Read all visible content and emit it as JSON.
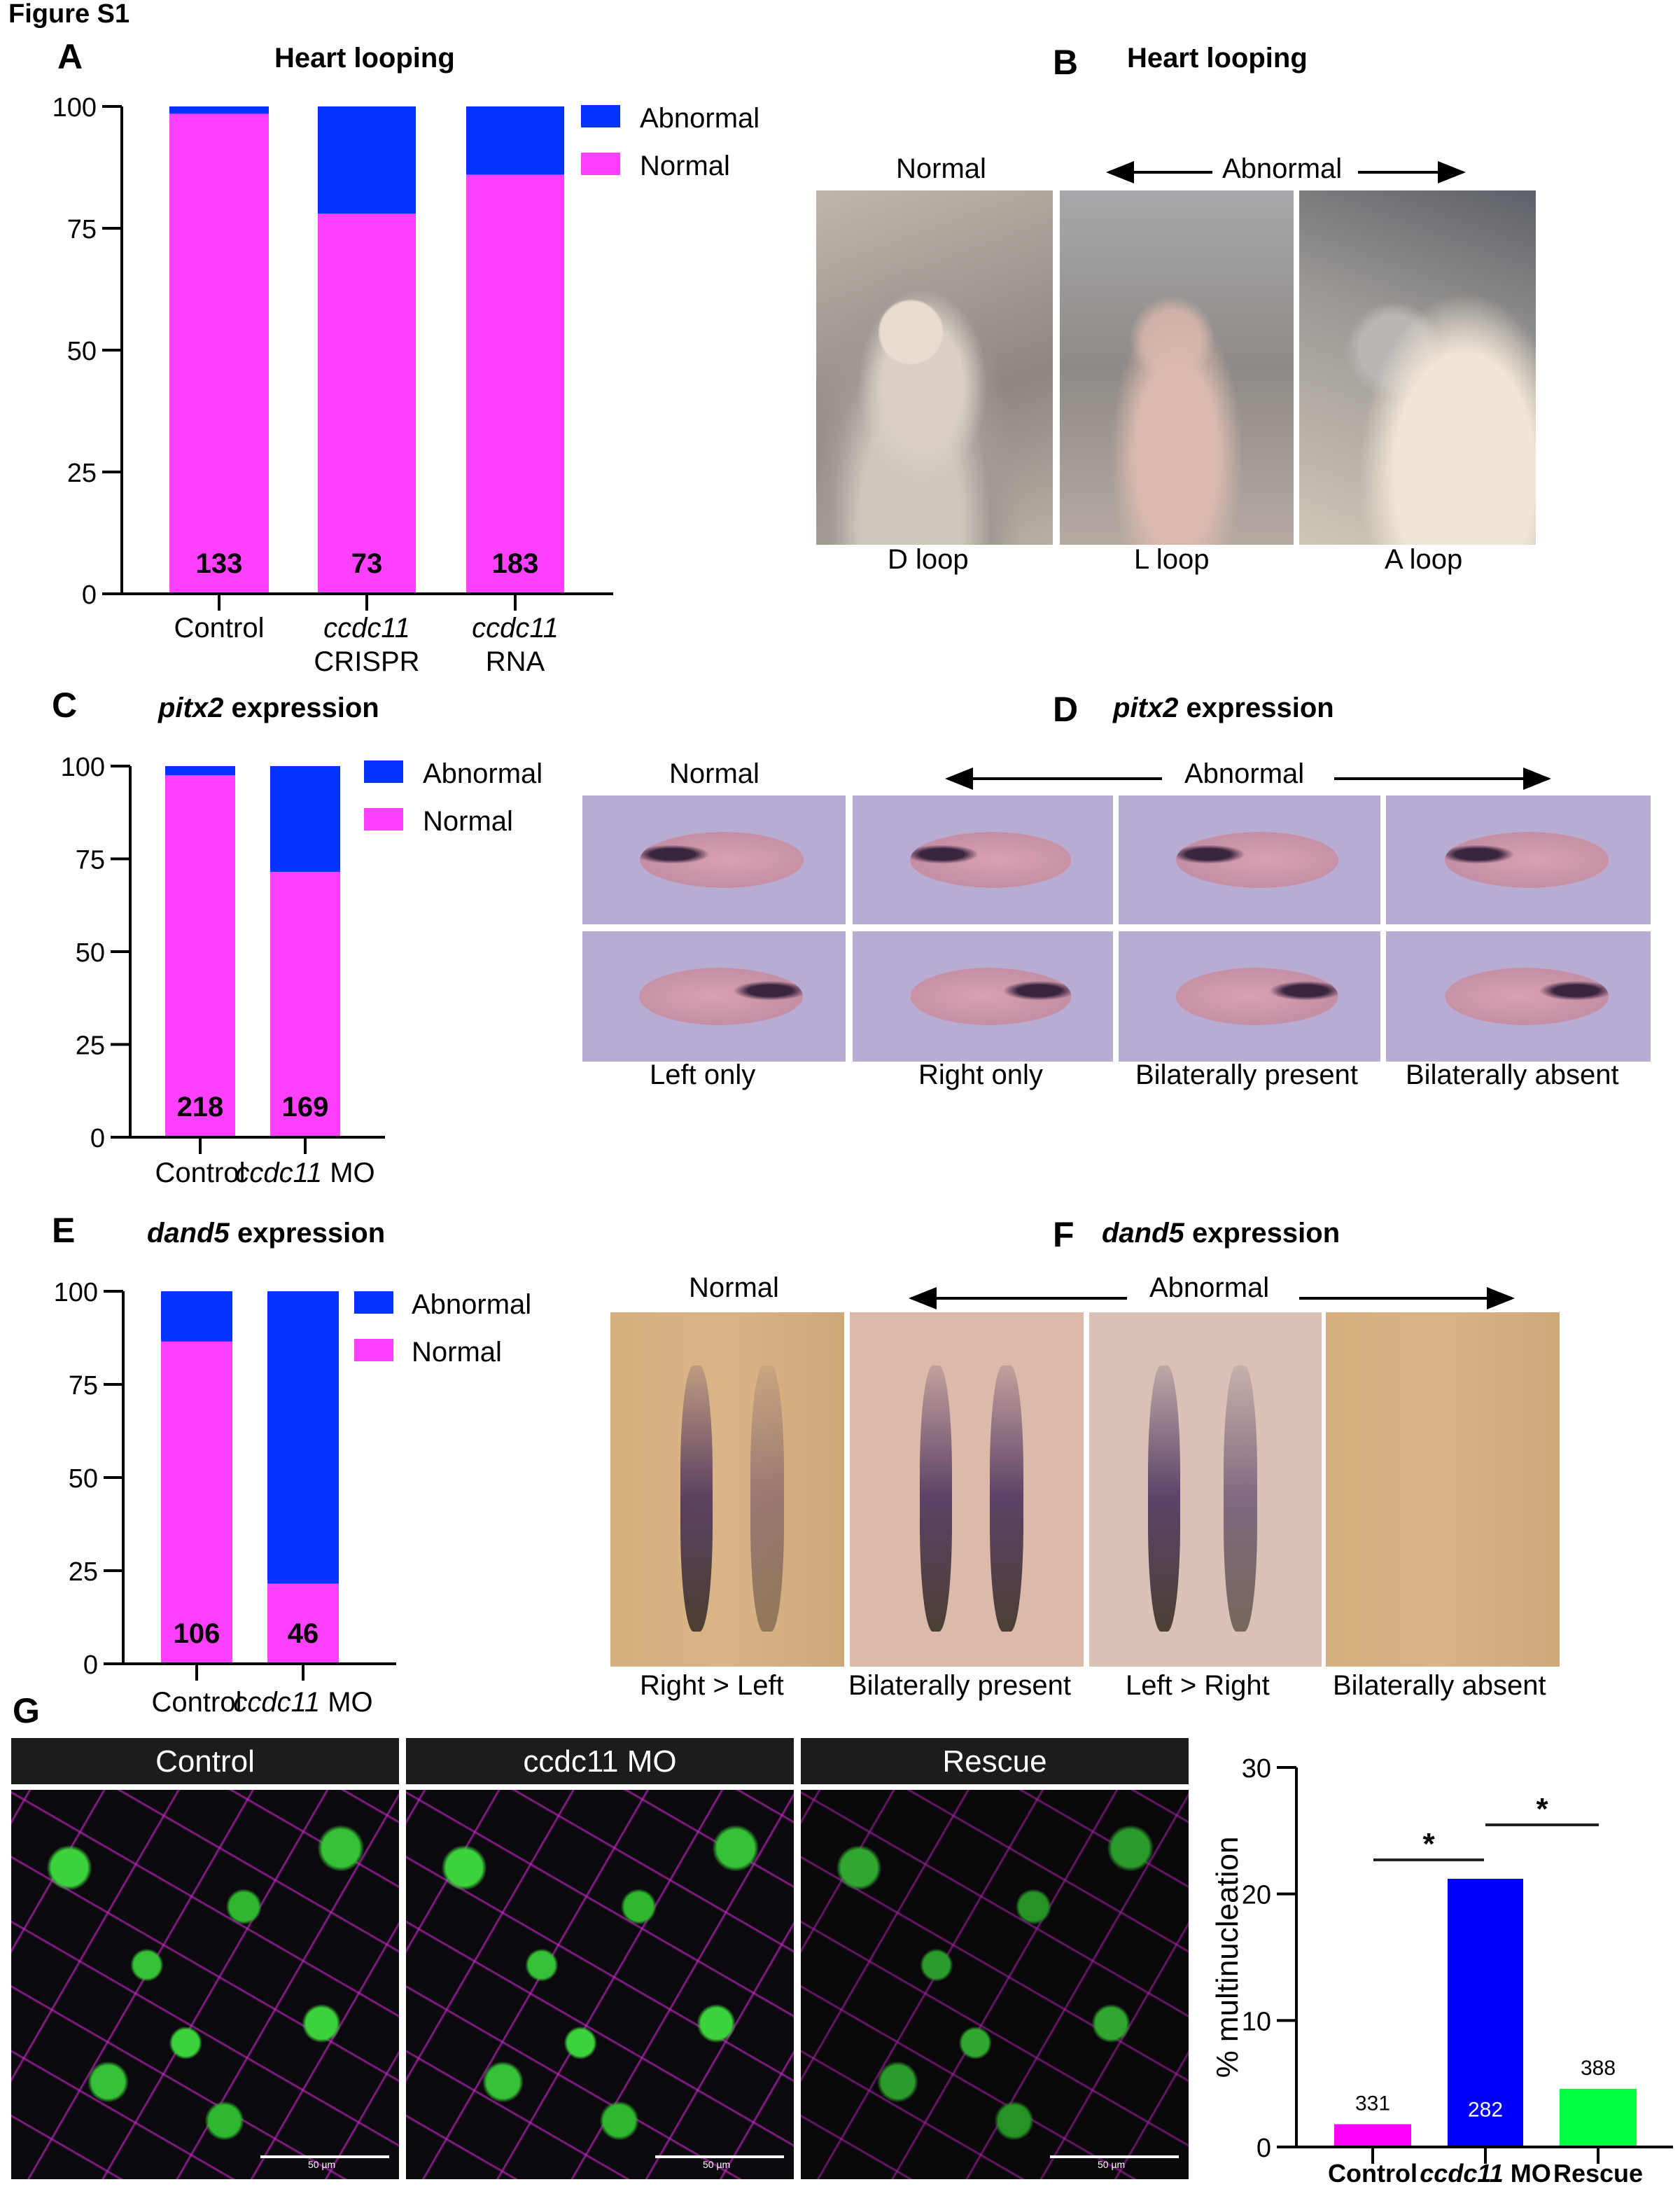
{
  "figure_title": "Figure S1",
  "panel_A": {
    "label": "A",
    "title": "Heart looping"
  },
  "panel_B": {
    "label": "B",
    "title": "Heart looping",
    "normal": "Normal",
    "abnormal": "Abnormal",
    "captions": [
      "D loop",
      "L loop",
      "A loop"
    ]
  },
  "panel_C": {
    "label": "C",
    "gene": "pitx2",
    "suffix": "expression"
  },
  "panel_D": {
    "label": "D",
    "gene": "pitx2",
    "suffix": "expression",
    "normal": "Normal",
    "abnormal": "Abnormal",
    "captions": [
      "Left only",
      "Right only",
      "Bilaterally present",
      "Bilaterally absent"
    ]
  },
  "panel_E": {
    "label": "E",
    "gene": "dand5",
    "suffix": "expression"
  },
  "panel_F": {
    "label": "F",
    "gene": "dand5",
    "suffix": "expression",
    "normal": "Normal",
    "abnormal": "Abnormal",
    "captions": [
      "Right > Left",
      "Bilaterally present",
      "Left > Right",
      "Bilaterally absent"
    ]
  },
  "panel_G": {
    "label": "G",
    "image_headers": [
      "Control",
      "ccdc11 MO",
      "Rescue"
    ],
    "scale_bar": "50 µm"
  },
  "chart_data": [
    {
      "id": "A",
      "type": "bar",
      "stacked": true,
      "categories": [
        "Control",
        "ccdc11 CRISPR",
        "ccdc11 RNA"
      ],
      "series": [
        {
          "name": "Normal",
          "values": [
            98.5,
            78,
            86
          ],
          "color": "#ff40ff"
        },
        {
          "name": "Abnormal",
          "values": [
            1.5,
            22,
            14
          ],
          "color": "#0433ff"
        }
      ],
      "n_labels": [
        "133",
        "73",
        "183"
      ],
      "ylim": [
        0,
        100
      ],
      "yticks": [
        "0",
        "25",
        "50",
        "75",
        "100"
      ],
      "legend": "top-right",
      "grid": false
    },
    {
      "id": "C",
      "type": "bar",
      "stacked": true,
      "categories": [
        "Control",
        "ccdc11 MO"
      ],
      "series": [
        {
          "name": "Normal",
          "values": [
            97.5,
            71.5
          ],
          "color": "#ff40ff"
        },
        {
          "name": "Abnormal",
          "values": [
            2.5,
            28.5
          ],
          "color": "#0433ff"
        }
      ],
      "n_labels": [
        "218",
        "169"
      ],
      "ylim": [
        0,
        100
      ],
      "yticks": [
        "0",
        "25",
        "50",
        "75",
        "100"
      ],
      "legend": "top-right",
      "grid": false
    },
    {
      "id": "E",
      "type": "bar",
      "stacked": true,
      "categories": [
        "Control",
        "ccdc11 MO"
      ],
      "series": [
        {
          "name": "Normal",
          "values": [
            86.5,
            21.5
          ],
          "color": "#ff40ff"
        },
        {
          "name": "Abnormal",
          "values": [
            13.5,
            78.5
          ],
          "color": "#0433ff"
        }
      ],
      "n_labels": [
        "106",
        "46"
      ],
      "ylim": [
        0,
        100
      ],
      "yticks": [
        "0",
        "25",
        "50",
        "75",
        "100"
      ],
      "legend": "top-right",
      "grid": false
    },
    {
      "id": "G",
      "type": "bar",
      "categories": [
        "Control",
        "ccdc11 MO",
        "Rescue"
      ],
      "values": [
        1.8,
        21.2,
        4.6
      ],
      "colors": [
        "#ff00ff",
        "#0000ff",
        "#00ff40"
      ],
      "n_labels": [
        "331",
        "282",
        "388"
      ],
      "ylabel": "% multinucleation",
      "ylim": [
        0,
        30
      ],
      "yticks": [
        "0",
        "10",
        "20",
        "30"
      ],
      "significance": [
        {
          "between": [
            "Control",
            "ccdc11 MO"
          ],
          "label": "*"
        },
        {
          "between": [
            "ccdc11 MO",
            "Rescue"
          ],
          "label": "*"
        }
      ],
      "grid": false
    }
  ]
}
